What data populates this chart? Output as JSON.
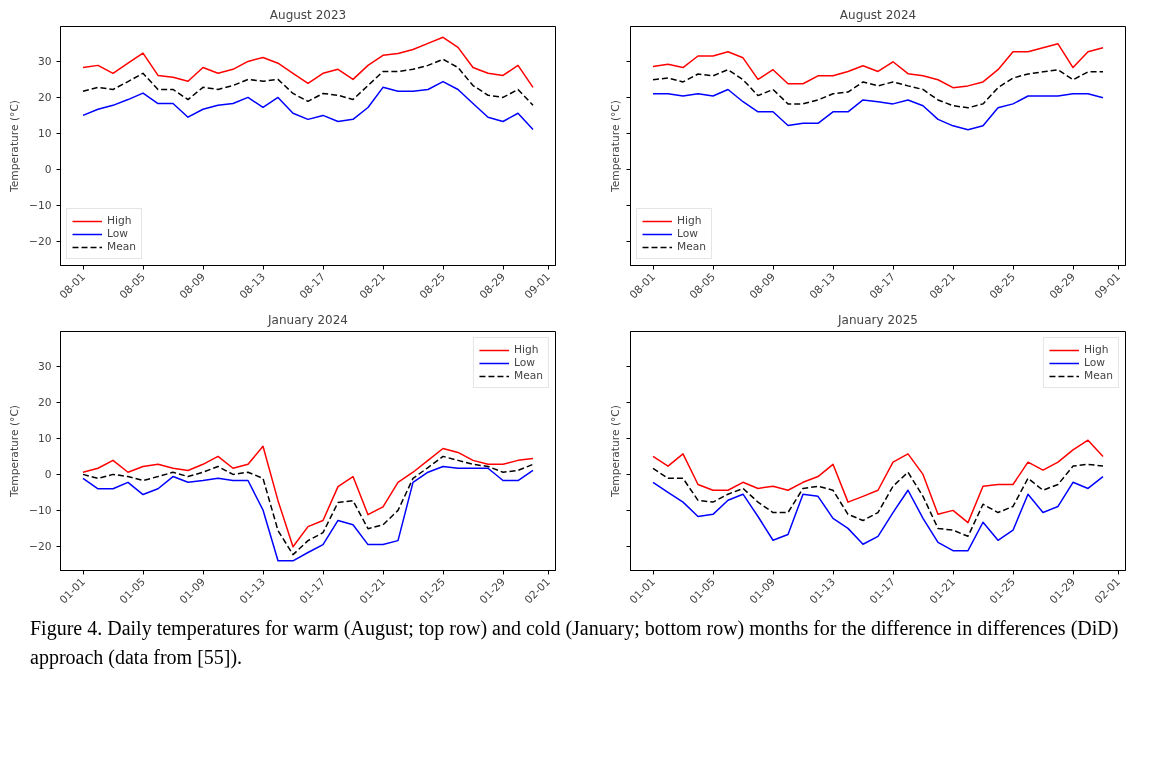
{
  "chart_data": [
    {
      "type": "line",
      "title": "August 2023",
      "ylabel": "Temperature (°C)",
      "legend": "bottom left",
      "grid": false,
      "x": [
        "2023-08-01",
        "2023-08-02",
        "2023-08-03",
        "2023-08-04",
        "2023-08-05",
        "2023-08-06",
        "2023-08-07",
        "2023-08-08",
        "2023-08-09",
        "2023-08-10",
        "2023-08-11",
        "2023-08-12",
        "2023-08-13",
        "2023-08-14",
        "2023-08-15",
        "2023-08-16",
        "2023-08-17",
        "2023-08-18",
        "2023-08-19",
        "2023-08-20",
        "2023-08-21",
        "2023-08-22",
        "2023-08-23",
        "2023-08-24",
        "2023-08-25",
        "2023-08-26",
        "2023-08-27",
        "2023-08-28",
        "2023-08-29",
        "2023-08-30",
        "2023-08-31"
      ],
      "xlim": [
        "2023-07-30T12:00",
        "2023-09-01T12:00"
      ],
      "xticks": [
        {
          "value": "2023-08-01",
          "label": "08-01"
        },
        {
          "value": "2023-08-05",
          "label": "08-05"
        },
        {
          "value": "2023-08-09",
          "label": "08-09"
        },
        {
          "value": "2023-08-13",
          "label": "08-13"
        },
        {
          "value": "2023-08-17",
          "label": "08-17"
        },
        {
          "value": "2023-08-21",
          "label": "08-21"
        },
        {
          "value": "2023-08-25",
          "label": "08-25"
        },
        {
          "value": "2023-08-29",
          "label": "08-29"
        },
        {
          "value": "2023-09-01",
          "label": "09-01"
        }
      ],
      "ylim": [
        -26.7,
        39.7
      ],
      "yticks": [
        -20,
        -10,
        0,
        10,
        20,
        30
      ],
      "series": [
        {
          "name": "High",
          "color": "#ff0000",
          "line_style": "solid",
          "values": [
            28.3,
            28.9,
            26.7,
            29.5,
            32.3,
            26.1,
            25.6,
            24.5,
            28.3,
            26.7,
            27.8,
            30.0,
            31.1,
            29.5,
            26.7,
            23.9,
            26.7,
            27.8,
            25.0,
            28.9,
            31.7,
            32.2,
            33.3,
            35.0,
            36.7,
            33.9,
            28.3,
            26.7,
            26.1,
            28.9,
            22.8
          ]
        },
        {
          "name": "Low",
          "color": "#0000ff",
          "line_style": "solid",
          "values": [
            15.0,
            16.7,
            17.8,
            19.4,
            21.2,
            18.3,
            18.3,
            14.5,
            16.7,
            17.8,
            18.3,
            20.0,
            17.2,
            20.0,
            15.6,
            13.9,
            15.0,
            13.3,
            13.9,
            17.2,
            22.8,
            21.7,
            21.7,
            22.2,
            24.4,
            22.2,
            18.3,
            14.5,
            13.3,
            15.6,
            11.1
          ]
        },
        {
          "name": "Mean",
          "color": "#000000",
          "line_style": "dashed",
          "values": [
            21.7,
            22.8,
            22.2,
            24.4,
            26.7,
            22.2,
            22.2,
            19.4,
            22.8,
            22.2,
            23.3,
            25.0,
            24.5,
            25.0,
            21.1,
            18.9,
            21.1,
            20.6,
            19.4,
            23.3,
            27.2,
            27.2,
            27.8,
            28.9,
            30.6,
            28.3,
            23.3,
            20.6,
            20.0,
            22.2,
            17.8
          ]
        }
      ]
    },
    {
      "type": "line",
      "title": "August 2024",
      "ylabel": "Temperature (°C)",
      "legend": "bottom left",
      "grid": false,
      "tick_labels": "x",
      "x": [
        "2024-08-01",
        "2024-08-02",
        "2024-08-03",
        "2024-08-04",
        "2024-08-05",
        "2024-08-06",
        "2024-08-07",
        "2024-08-08",
        "2024-08-09",
        "2024-08-10",
        "2024-08-11",
        "2024-08-12",
        "2024-08-13",
        "2024-08-14",
        "2024-08-15",
        "2024-08-16",
        "2024-08-17",
        "2024-08-18",
        "2024-08-19",
        "2024-08-20",
        "2024-08-21",
        "2024-08-22",
        "2024-08-23",
        "2024-08-24",
        "2024-08-25",
        "2024-08-26",
        "2024-08-27",
        "2024-08-28",
        "2024-08-29",
        "2024-08-30",
        "2024-08-31"
      ],
      "xlim": [
        "2024-07-30T12:00",
        "2024-09-01T12:00"
      ],
      "xticks": [
        {
          "value": "2024-08-01",
          "label": "08-01"
        },
        {
          "value": "2024-08-05",
          "label": "08-05"
        },
        {
          "value": "2024-08-09",
          "label": "08-09"
        },
        {
          "value": "2024-08-13",
          "label": "08-13"
        },
        {
          "value": "2024-08-17",
          "label": "08-17"
        },
        {
          "value": "2024-08-21",
          "label": "08-21"
        },
        {
          "value": "2024-08-25",
          "label": "08-25"
        },
        {
          "value": "2024-08-29",
          "label": "08-29"
        },
        {
          "value": "2024-09-01",
          "label": "09-01"
        }
      ],
      "ylim": [
        -26.7,
        39.7
      ],
      "yticks": [
        -20,
        -10,
        0,
        10,
        20,
        30
      ],
      "series": [
        {
          "name": "High",
          "color": "#ff0000",
          "line_style": "solid",
          "values": [
            28.6,
            29.2,
            28.3,
            31.5,
            31.5,
            32.7,
            31.0,
            25.0,
            27.7,
            23.8,
            23.8,
            26.0,
            26.0,
            27.2,
            28.8,
            27.2,
            29.9,
            26.6,
            26.0,
            24.9,
            22.7,
            23.2,
            24.3,
            27.7,
            32.7,
            32.7,
            33.8,
            34.9,
            28.3,
            32.7,
            33.8
          ]
        },
        {
          "name": "Low",
          "color": "#0000ff",
          "line_style": "solid",
          "values": [
            21.0,
            21.0,
            20.4,
            21.0,
            20.4,
            22.2,
            18.8,
            16.0,
            16.0,
            12.2,
            12.8,
            12.8,
            16.0,
            16.0,
            19.3,
            18.8,
            18.2,
            19.3,
            17.7,
            13.9,
            12.1,
            11.0,
            12.1,
            17.1,
            18.2,
            20.4,
            20.4,
            20.4,
            21.0,
            21.0,
            19.9
          ]
        },
        {
          "name": "Mean",
          "color": "#000000",
          "line_style": "dashed",
          "values": [
            24.9,
            25.4,
            24.3,
            26.5,
            26.0,
            27.7,
            24.9,
            20.5,
            22.2,
            18.2,
            18.2,
            19.3,
            21.0,
            21.5,
            24.3,
            23.2,
            24.3,
            23.2,
            22.2,
            19.3,
            17.7,
            17.1,
            18.2,
            22.7,
            25.4,
            26.5,
            27.1,
            27.7,
            24.9,
            27.1,
            27.1
          ]
        }
      ]
    },
    {
      "type": "line",
      "title": "January 2024",
      "ylabel": "Temperature (°C)",
      "legend": "top right",
      "grid": false,
      "x": [
        "2024-01-01",
        "2024-01-02",
        "2024-01-03",
        "2024-01-04",
        "2024-01-05",
        "2024-01-06",
        "2024-01-07",
        "2024-01-08",
        "2024-01-09",
        "2024-01-10",
        "2024-01-11",
        "2024-01-12",
        "2024-01-13",
        "2024-01-14",
        "2024-01-15",
        "2024-01-16",
        "2024-01-17",
        "2024-01-18",
        "2024-01-19",
        "2024-01-20",
        "2024-01-21",
        "2024-01-22",
        "2024-01-23",
        "2024-01-24",
        "2024-01-25",
        "2024-01-26",
        "2024-01-27",
        "2024-01-28",
        "2024-01-29",
        "2024-01-30",
        "2024-01-31"
      ],
      "xlim": [
        "2023-12-30T12:00",
        "2024-02-01T12:00"
      ],
      "xticks": [
        {
          "value": "2024-01-01",
          "label": "01-01"
        },
        {
          "value": "2024-01-05",
          "label": "01-05"
        },
        {
          "value": "2024-01-09",
          "label": "01-09"
        },
        {
          "value": "2024-01-13",
          "label": "01-13"
        },
        {
          "value": "2024-01-17",
          "label": "01-17"
        },
        {
          "value": "2024-01-21",
          "label": "01-21"
        },
        {
          "value": "2024-01-25",
          "label": "01-25"
        },
        {
          "value": "2024-01-29",
          "label": "01-29"
        },
        {
          "value": "2024-02-01",
          "label": "02-01"
        }
      ],
      "ylim": [
        -26.7,
        39.7
      ],
      "yticks": [
        -20,
        -10,
        0,
        10,
        20,
        30
      ],
      "series": [
        {
          "name": "High",
          "color": "#ff0000",
          "line_style": "solid",
          "values": [
            0.6,
            1.7,
            3.9,
            0.6,
            2.2,
            2.8,
            1.7,
            1.1,
            2.8,
            5.0,
            1.7,
            2.8,
            7.8,
            -7.3,
            -20.1,
            -14.5,
            -12.8,
            -3.4,
            -0.6,
            -11.2,
            -9.0,
            -2.2,
            0.6,
            3.9,
            7.2,
            6.1,
            3.9,
            2.8,
            2.8,
            3.9,
            4.4
          ]
        },
        {
          "name": "Low",
          "color": "#0000ff",
          "line_style": "solid",
          "values": [
            -1.1,
            -4.0,
            -4.0,
            -2.2,
            -5.6,
            -4.0,
            -0.6,
            -2.2,
            -1.7,
            -1.1,
            -1.7,
            -1.7,
            -9.9,
            -24.0,
            -24.0,
            -21.7,
            -19.5,
            -12.8,
            -14.0,
            -19.5,
            -19.5,
            -18.4,
            -2.2,
            0.6,
            2.2,
            1.7,
            1.7,
            1.7,
            -1.7,
            -1.7,
            1.1
          ]
        },
        {
          "name": "Mean",
          "color": "#000000",
          "line_style": "dashed",
          "values": [
            0.0,
            -1.1,
            0.0,
            -0.6,
            -1.7,
            -0.6,
            0.6,
            -0.6,
            0.6,
            2.2,
            0.0,
            0.6,
            -1.1,
            -15.6,
            -22.3,
            -18.4,
            -16.2,
            -7.8,
            -7.3,
            -15.1,
            -14.0,
            -10.0,
            -1.1,
            1.9,
            5.0,
            3.9,
            2.8,
            2.2,
            0.6,
            1.1,
            2.8
          ]
        }
      ]
    },
    {
      "type": "line",
      "title": "January 2025",
      "ylabel": "Temperature (°C)",
      "legend": "top right",
      "grid": false,
      "tick_labels": "x",
      "x": [
        "2025-01-01",
        "2025-01-02",
        "2025-01-03",
        "2025-01-04",
        "2025-01-05",
        "2025-01-06",
        "2025-01-07",
        "2025-01-08",
        "2025-01-09",
        "2025-01-10",
        "2025-01-11",
        "2025-01-12",
        "2025-01-13",
        "2025-01-14",
        "2025-01-15",
        "2025-01-16",
        "2025-01-17",
        "2025-01-18",
        "2025-01-19",
        "2025-01-20",
        "2025-01-21",
        "2025-01-22",
        "2025-01-23",
        "2025-01-24",
        "2025-01-25",
        "2025-01-26",
        "2025-01-27",
        "2025-01-28",
        "2025-01-29",
        "2025-01-30",
        "2025-01-31"
      ],
      "xlim": [
        "2024-12-30T12:00",
        "2025-02-01T12:00"
      ],
      "xticks": [
        {
          "value": "2025-01-01",
          "label": "01-01"
        },
        {
          "value": "2025-01-05",
          "label": "01-05"
        },
        {
          "value": "2025-01-09",
          "label": "01-09"
        },
        {
          "value": "2025-01-13",
          "label": "01-13"
        },
        {
          "value": "2025-01-17",
          "label": "01-17"
        },
        {
          "value": "2025-01-21",
          "label": "01-21"
        },
        {
          "value": "2025-01-25",
          "label": "01-25"
        },
        {
          "value": "2025-01-29",
          "label": "01-29"
        },
        {
          "value": "2025-02-01",
          "label": "02-01"
        }
      ],
      "ylim": [
        -26.7,
        39.7
      ],
      "yticks": [
        -20,
        -10,
        0,
        10,
        20,
        30
      ],
      "annotations": [
        "Figure 4. Daily temperatures for warm (August; top row) and cold (January; bottom row) months for the difference in differences (DiD) approach (data from [55])."
      ],
      "series": [
        {
          "name": "High",
          "color": "#ff0000",
          "line_style": "solid",
          "values": [
            5.0,
            2.3,
            5.7,
            -2.8,
            -4.4,
            -4.4,
            -2.2,
            -3.9,
            -3.3,
            -4.4,
            -2.2,
            -0.6,
            2.8,
            -7.7,
            -6.1,
            -4.4,
            3.4,
            5.7,
            0.0,
            -11.1,
            -10.0,
            -13.4,
            -3.3,
            -2.8,
            -2.8,
            3.4,
            1.2,
            3.4,
            6.8,
            9.5,
            5.0
          ]
        },
        {
          "name": "Low",
          "color": "#0000ff",
          "line_style": "solid",
          "values": [
            -2.2,
            -5.0,
            -7.7,
            -11.7,
            -11.1,
            -7.2,
            -5.5,
            -11.7,
            -18.3,
            -16.7,
            -5.5,
            -6.1,
            -12.2,
            -15.0,
            -19.4,
            -17.2,
            -10.6,
            -4.4,
            -12.2,
            -18.9,
            -21.2,
            -21.2,
            -13.3,
            -18.3,
            -15.5,
            -5.5,
            -10.6,
            -8.9,
            -2.2,
            -3.9,
            -0.6
          ]
        },
        {
          "name": "Mean",
          "color": "#000000",
          "line_style": "dashed",
          "values": [
            1.7,
            -1.1,
            -1.1,
            -7.2,
            -7.7,
            -5.5,
            -3.9,
            -7.7,
            -10.6,
            -10.6,
            -3.9,
            -3.3,
            -4.4,
            -11.1,
            -12.8,
            -10.6,
            -3.3,
            0.6,
            -6.1,
            -15.0,
            -15.5,
            -17.2,
            -8.3,
            -10.6,
            -8.9,
            -1.1,
            -4.4,
            -2.8,
            2.3,
            2.8,
            2.3
          ]
        }
      ]
    }
  ]
}
